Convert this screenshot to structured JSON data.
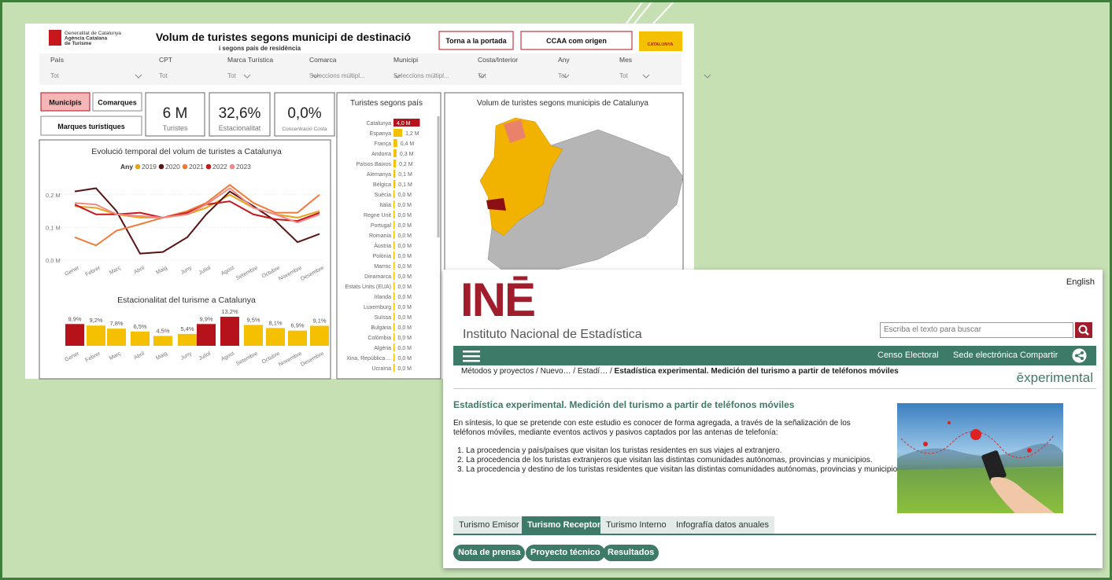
{
  "dashboard": {
    "agency": [
      "Generalitat de Catalunya",
      "Agència Catalana",
      "de Turisme"
    ],
    "title": "Volum de turistes segons municipi de destinació",
    "subtitle": "i segons país de residència",
    "buttons": [
      "Torna a la portada",
      "CCAA com origen"
    ],
    "brand": "CATALUNYA",
    "filters": [
      {
        "label": "País",
        "value": "Tot"
      },
      {
        "label": "CPT",
        "value": "Tot"
      },
      {
        "label": "Marca Turística",
        "value": "Tot"
      },
      {
        "label": "Comarca",
        "value": "Seleccions múltipl..."
      },
      {
        "label": "Municipi",
        "value": "Seleccions múltipl..."
      },
      {
        "label": "Costa/Interior",
        "value": "Tot"
      },
      {
        "label": "Any",
        "value": "Tot"
      },
      {
        "label": "Mes",
        "value": "Tot"
      }
    ],
    "tabs": [
      "Municipis",
      "Comarques",
      "Marques turístiques"
    ],
    "kpis": [
      {
        "value": "6 M",
        "label": "Turistes"
      },
      {
        "value": "32,6%",
        "label": "Estacionalitat"
      },
      {
        "value": "0,0%",
        "label": "Concentració Costa"
      }
    ],
    "line_chart": {
      "type": "line",
      "title": "Evolució temporal del volum de turistes a Catalunya",
      "legend_title": "Any",
      "categories": [
        "Gener",
        "Febrer",
        "Març",
        "Abril",
        "Maig",
        "Juny",
        "Juliol",
        "Agost",
        "Setembre",
        "Octubre",
        "Novembre",
        "Desembre"
      ],
      "series": [
        {
          "name": "2019",
          "color": "#e8a317",
          "values": [
            0.165,
            0.16,
            0.14,
            0.13,
            0.13,
            0.14,
            0.16,
            0.2,
            0.16,
            0.14,
            0.13,
            0.15
          ]
        },
        {
          "name": "2020",
          "color": "#5a1414",
          "values": [
            0.21,
            0.22,
            0.15,
            0.02,
            0.025,
            0.07,
            0.14,
            0.21,
            0.165,
            0.12,
            0.055,
            0.08
          ]
        },
        {
          "name": "2021",
          "color": "#ee7d3a",
          "values": [
            0.07,
            0.045,
            0.09,
            0.11,
            0.13,
            0.15,
            0.175,
            0.23,
            0.175,
            0.145,
            0.145,
            0.2
          ]
        },
        {
          "name": "2022",
          "color": "#c8161d",
          "values": [
            0.17,
            0.14,
            0.14,
            0.145,
            0.13,
            0.145,
            0.17,
            0.18,
            0.14,
            0.125,
            0.12,
            0.145
          ]
        },
        {
          "name": "2023",
          "color": "#f08a8a",
          "values": [
            0.175,
            0.17,
            0.14,
            0.135,
            0.13,
            0.14,
            0.17,
            0.22,
            0.16,
            0.14,
            0.115,
            0.14
          ]
        }
      ],
      "ylim": [
        0,
        0.25
      ],
      "yticks": [
        {
          "value": 0,
          "label": "0,0 M"
        },
        {
          "value": 0.1,
          "label": "0,1 M"
        },
        {
          "value": 0.2,
          "label": "0,2 M"
        }
      ]
    },
    "bar_chart": {
      "type": "bar",
      "title": "Estacionalitat del turisme a Catalunya",
      "categories": [
        "Gener",
        "Febrer",
        "Març",
        "Abril",
        "Maig",
        "Juny",
        "Juliol",
        "Agost",
        "Setembre",
        "Octubre",
        "Novembre",
        "Desembre"
      ],
      "values": [
        9.9,
        9.2,
        7.8,
        6.5,
        4.5,
        5.4,
        9.9,
        13.2,
        9.5,
        8.1,
        6.9,
        9.1
      ],
      "value_labels": [
        "9,9%",
        "9,2%",
        "7,8%",
        "6,5%",
        "4,5%",
        "5,4%",
        "9,9%",
        "13,2%",
        "9,5%",
        "8,1%",
        "6,9%",
        "9,1%"
      ],
      "colors": [
        "#b5121b",
        "#f5c000",
        "#f5c000",
        "#f5c000",
        "#f5c000",
        "#f5c000",
        "#b5121b",
        "#b5121b",
        "#f5c000",
        "#f5c000",
        "#f5c000",
        "#f5c000"
      ]
    },
    "countries": {
      "type": "bar",
      "title": "Turistes segons país",
      "categories": [
        "Catalunya",
        "Espanya",
        "França",
        "Andorra",
        "Països Baixos",
        "Alemanya",
        "Bèlgica",
        "Suècia",
        "Itàlia",
        "Regne Unit",
        "Portugal",
        "Romania",
        "Àustria",
        "Polònia",
        "Marroc",
        "Dinamarca",
        "Estats Units (EUA)",
        "Irlanda",
        "Luxemburg",
        "Suïssa",
        "Bulgària",
        "Colòmbia",
        "Algèria",
        "Xina, República ...",
        "Ucraïna"
      ],
      "values": [
        4.0,
        1.2,
        0.4,
        0.3,
        0.2,
        0.1,
        0.1,
        0.0,
        0.0,
        0.0,
        0.0,
        0.0,
        0.0,
        0.0,
        0.0,
        0.0,
        0.0,
        0.0,
        0.0,
        0.0,
        0.0,
        0.0,
        0.0,
        0.0,
        0.0
      ],
      "value_labels": [
        "4,0 M",
        "1,2 M",
        "0,4 M",
        "0,3 M",
        "0,2 M",
        "0,1 M",
        "0,1 M",
        "0,0 M",
        "0,0 M",
        "0,0 M",
        "0,0 M",
        "0,0 M",
        "0,0 M",
        "0,0 M",
        "0,0 M",
        "0,0 M",
        "0,0 M",
        "0,0 M",
        "0,0 M",
        "0,0 M",
        "0,0 M",
        "0,0 M",
        "0,0 M",
        "0,0 M",
        "0,0 M"
      ],
      "colors": [
        "#b5121b",
        "#f5c000",
        "#f5c000",
        "#f5c000",
        "#f5c000",
        "#f5c000",
        "#f5c000",
        "#f5c000",
        "#f5c000",
        "#f5c000",
        "#f5c000",
        "#f5c000",
        "#f5c000",
        "#f5c000",
        "#f5c000",
        "#f5c000",
        "#f5c000",
        "#f5c000",
        "#f5c000",
        "#f5c000",
        "#f5c000",
        "#f5c000",
        "#f5c000",
        "#f5c000",
        "#f5c000"
      ]
    },
    "map_title": "Volum de turistes segons municipis de Catalunya"
  },
  "ine": {
    "language": "English",
    "logo": "INĒ",
    "name": "Instituto Nacional de Estadística",
    "search_placeholder": "Escriba el texto para buscar",
    "nav": [
      "Censo Electoral",
      "Sede electrónica",
      "Compartir"
    ],
    "breadcrumb": [
      "Métodos y proyectos / Nuevo… / Estadí… / ",
      "Estadística experimental. Medición del turismo a partir de teléfonos móviles"
    ],
    "badge": "ēxperimental",
    "heading": "Estadística experimental. Medición del turismo a partir de teléfonos móviles",
    "intro": "En síntesis, lo que se pretende con este estudio es conocer de forma agregada, a través de la señalización de los teléfonos móviles, mediante eventos activos y pasivos captados por las antenas de telefonía:",
    "items": [
      "1. La procedencia y país/países que visitan los turistas residentes en sus viajes al extranjero.",
      "2. La procedencia de los turistas extranjeros que visitan las distintas comunidades autónomas, provincias y municipios.",
      "3. La procedencia y destino de los turistas residentes que visitan las distintas comunidades autónomas, provincias y municipios."
    ],
    "tabs": [
      "Turismo Emisor",
      "Turismo Receptor",
      "Turismo Interno",
      "Infografía datos anuales"
    ],
    "buttons": [
      "Nota de prensa",
      "Proyecto técnico",
      "Resultados"
    ]
  }
}
